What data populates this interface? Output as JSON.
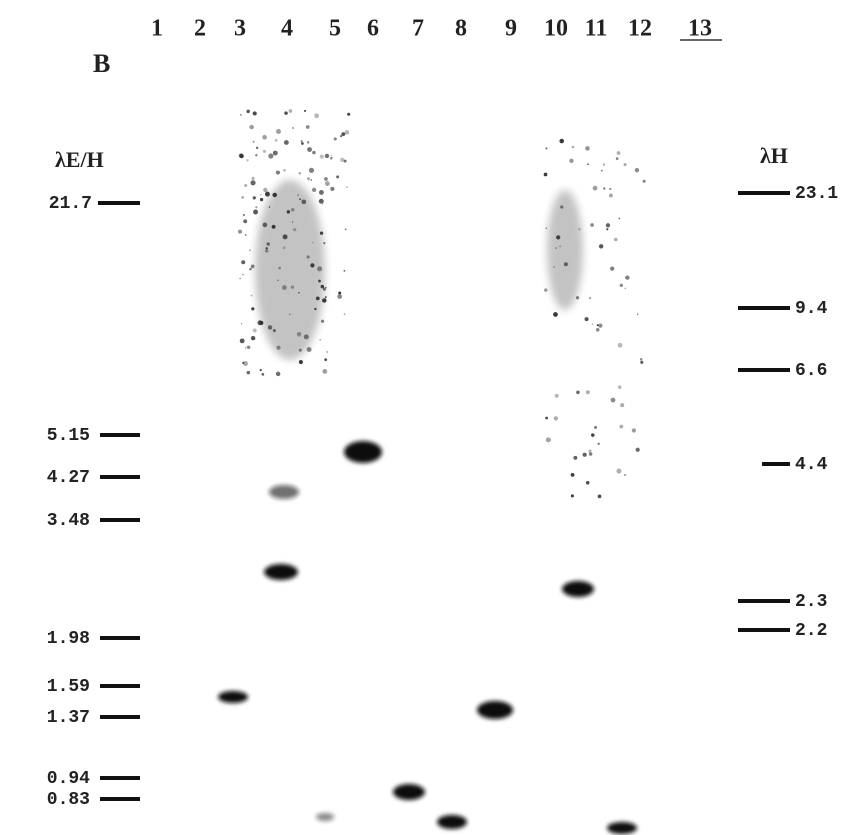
{
  "panel": "B",
  "lanes": [
    "1",
    "2",
    "3",
    "4",
    "5",
    "6",
    "7",
    "8",
    "9",
    "10",
    "11",
    "12",
    "13"
  ],
  "left_marker": {
    "title": "λE/H",
    "sizes": [
      "21.7",
      "5.15",
      "4.27",
      "3.48",
      "1.98",
      "1.59",
      "1.37",
      "0.94",
      "0.83"
    ]
  },
  "right_marker": {
    "title": "λH",
    "sizes": [
      "23.1",
      "9.4",
      "6.6",
      "4.4",
      "2.3",
      "2.2"
    ]
  }
}
